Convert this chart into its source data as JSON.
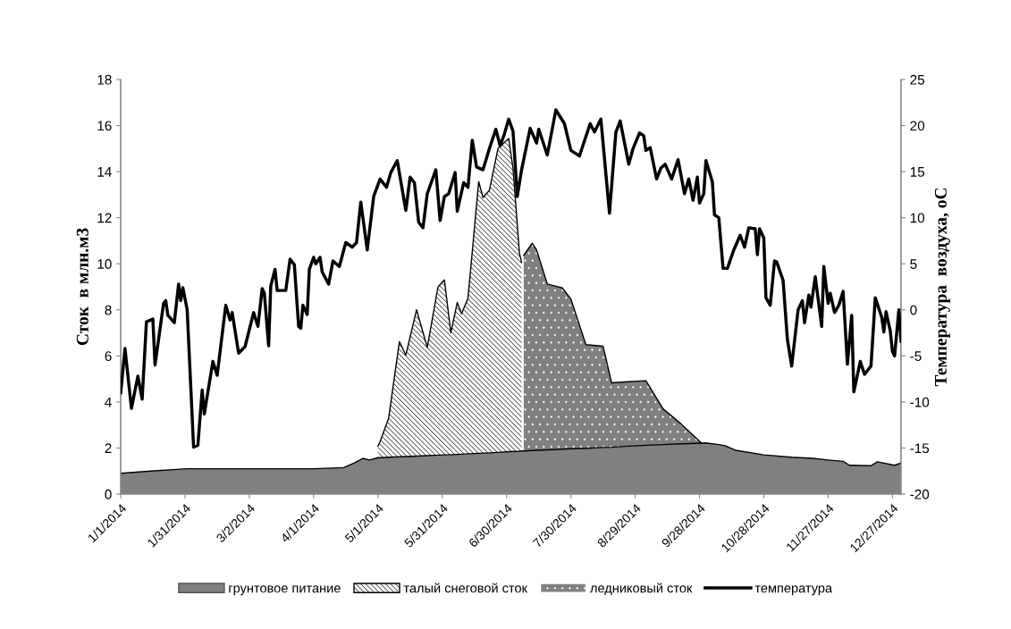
{
  "chart_data": {
    "type": "area",
    "stacked": true,
    "xlabel": null,
    "ylabel": "Сток  в млн.м3",
    "y2label": "Температура  воздуха, оС",
    "x": [
      "2014-01-01",
      "2014-01-15",
      "2014-02-01",
      "2014-03-01",
      "2014-04-01",
      "2014-04-15",
      "2014-04-20",
      "2014-04-24",
      "2014-04-27",
      "2014-04-30",
      "2014-05-01",
      "2014-05-02",
      "2014-05-06",
      "2014-05-11",
      "2014-05-14",
      "2014-05-19",
      "2014-05-24",
      "2014-05-29",
      "2014-06-01",
      "2014-06-04",
      "2014-06-07",
      "2014-06-09",
      "2014-06-12",
      "2014-06-17",
      "2014-06-19",
      "2014-06-22",
      "2014-06-26",
      "2014-07-01",
      "2014-07-03",
      "2014-07-06",
      "2014-07-07",
      "2014-07-08",
      "2014-07-12",
      "2014-07-14",
      "2014-07-19",
      "2014-07-26",
      "2014-07-30",
      "2014-08-06",
      "2014-08-14",
      "2014-08-18",
      "2014-08-24",
      "2014-09-03",
      "2014-09-11",
      "2014-09-19",
      "2014-09-29",
      "2014-10-01",
      "2014-10-07",
      "2014-10-10",
      "2014-10-15",
      "2014-10-28",
      "2014-11-10",
      "2014-11-20",
      "2014-11-27",
      "2014-12-04",
      "2014-12-07",
      "2014-12-17",
      "2014-12-20",
      "2014-12-28",
      "2014-12-31"
    ],
    "series": [
      {
        "name": "грунтовое питание",
        "color": "#808080",
        "values": [
          0.9,
          1.0,
          1.1,
          1.1,
          1.1,
          1.15,
          1.35,
          1.55,
          1.48,
          1.55,
          1.58,
          1.58,
          1.6,
          1.62,
          1.63,
          1.65,
          1.67,
          1.69,
          1.7,
          1.71,
          1.72,
          1.73,
          1.75,
          1.77,
          1.78,
          1.79,
          1.81,
          1.84,
          1.85,
          1.86,
          1.87,
          1.87,
          1.89,
          1.9,
          1.92,
          1.95,
          1.97,
          1.99,
          2.02,
          2.03,
          2.07,
          2.12,
          2.15,
          2.18,
          2.21,
          2.22,
          2.15,
          2.1,
          1.9,
          1.7,
          1.6,
          1.55,
          1.48,
          1.42,
          1.25,
          1.23,
          1.4,
          1.25,
          1.35
        ]
      },
      {
        "name": "талый снеговой сток",
        "color": "#ffffff",
        "values": [
          null,
          null,
          null,
          null,
          null,
          null,
          null,
          null,
          null,
          null,
          0.5,
          0.7,
          1.7,
          5.0,
          4.4,
          6.35,
          4.7,
          7.3,
          7.6,
          5.3,
          6.6,
          6.1,
          6.75,
          11.8,
          11.1,
          11.4,
          13.2,
          13.6,
          12.3,
          8.6,
          8.2,
          null,
          null,
          null,
          null,
          null,
          null,
          null,
          null,
          null,
          null,
          null,
          null,
          null,
          null,
          null,
          null,
          null,
          null,
          null,
          null,
          null,
          null,
          null,
          null,
          null,
          null,
          null,
          null
        ]
      },
      {
        "name": "ледниковый сток",
        "color": "#808080",
        "values": [
          null,
          null,
          null,
          null,
          null,
          null,
          null,
          null,
          null,
          null,
          null,
          null,
          null,
          null,
          null,
          null,
          null,
          null,
          null,
          null,
          null,
          null,
          null,
          null,
          null,
          null,
          null,
          null,
          null,
          null,
          null,
          8.5,
          9.0,
          8.7,
          7.2,
          7.0,
          6.5,
          4.5,
          4.4,
          2.8,
          2.8,
          2.8,
          1.55,
          0.9,
          0.0,
          null,
          null,
          null,
          null,
          null,
          null,
          null,
          null,
          null,
          null,
          null,
          null,
          null,
          null
        ]
      },
      {
        "name": "температура",
        "type": "line",
        "axis": "y2",
        "color": "#000000",
        "x": [
          "2014-01-01",
          "2014-01-03",
          "2014-01-06",
          "2014-01-09",
          "2014-01-11",
          "2014-01-13",
          "2014-01-16",
          "2014-01-17",
          "2014-01-21",
          "2014-01-22",
          "2014-01-23",
          "2014-01-26",
          "2014-01-28",
          "2014-01-29",
          "2014-01-30",
          "2014-02-01",
          "2014-02-04",
          "2014-02-06",
          "2014-02-08",
          "2014-02-09",
          "2014-02-13",
          "2014-02-15",
          "2014-02-19",
          "2014-02-21",
          "2014-02-22",
          "2014-02-25",
          "2014-02-28",
          "2014-03-04",
          "2014-03-06",
          "2014-03-08",
          "2014-03-09",
          "2014-03-11",
          "2014-03-12",
          "2014-03-14",
          "2014-03-15",
          "2014-03-19",
          "2014-03-21",
          "2014-03-23",
          "2014-03-25",
          "2014-03-26",
          "2014-03-27",
          "2014-03-29",
          "2014-03-30",
          "2014-04-01",
          "2014-04-02",
          "2014-04-04",
          "2014-04-05",
          "2014-04-08",
          "2014-04-10",
          "2014-04-13",
          "2014-04-16",
          "2014-04-19",
          "2014-04-21",
          "2014-04-23",
          "2014-04-26",
          "2014-04-29",
          "2014-05-02",
          "2014-05-05",
          "2014-05-07",
          "2014-05-10",
          "2014-05-14",
          "2014-05-16",
          "2014-05-18",
          "2014-05-20",
          "2014-05-22",
          "2014-05-24",
          "2014-05-28",
          "2014-05-30",
          "2014-06-01",
          "2014-06-03",
          "2014-06-06",
          "2014-06-07",
          "2014-06-10",
          "2014-06-12",
          "2014-06-14",
          "2014-06-16",
          "2014-06-19",
          "2014-06-22",
          "2014-06-25",
          "2014-06-27",
          "2014-06-29",
          "2014-07-01",
          "2014-07-03",
          "2014-07-05",
          "2014-07-07",
          "2014-07-11",
          "2014-07-14",
          "2014-07-15",
          "2014-07-19",
          "2014-07-23",
          "2014-07-27",
          "2014-07-30",
          "2014-08-03",
          "2014-08-08",
          "2014-08-10",
          "2014-08-13",
          "2014-08-17",
          "2014-08-20",
          "2014-08-22",
          "2014-08-26",
          "2014-08-28",
          "2014-08-31",
          "2014-09-02",
          "2014-09-03",
          "2014-09-05",
          "2014-09-08",
          "2014-09-10",
          "2014-09-12",
          "2014-09-15",
          "2014-09-18",
          "2014-09-21",
          "2014-09-23",
          "2014-09-25",
          "2014-09-27",
          "2014-09-28",
          "2014-09-30",
          "2014-10-01",
          "2014-10-04",
          "2014-10-05",
          "2014-10-07",
          "2014-10-09",
          "2014-10-11",
          "2014-10-14",
          "2014-10-17",
          "2014-10-19",
          "2014-10-21",
          "2014-10-24",
          "2014-10-25",
          "2014-10-26",
          "2014-10-28",
          "2014-10-29",
          "2014-10-31",
          "2014-11-02",
          "2014-11-03",
          "2014-11-06",
          "2014-11-08",
          "2014-11-10",
          "2014-11-13",
          "2014-11-15",
          "2014-11-16",
          "2014-11-18",
          "2014-11-19",
          "2014-11-21",
          "2014-11-24",
          "2014-11-25",
          "2014-11-27",
          "2014-11-28",
          "2014-11-30",
          "2014-12-02",
          "2014-12-04",
          "2014-12-06",
          "2014-12-08",
          "2014-12-09",
          "2014-12-12",
          "2014-12-14",
          "2014-12-17",
          "2014-12-19",
          "2014-12-22",
          "2014-12-23",
          "2014-12-24",
          "2014-12-26",
          "2014-12-27",
          "2014-12-28",
          "2014-12-30",
          "2014-12-31"
        ],
        "values": [
          -9.0,
          -4.2,
          -10.7,
          -7.2,
          -9.7,
          -1.3,
          -1.0,
          -6.0,
          0.7,
          1.0,
          -0.6,
          -1.4,
          2.8,
          1.0,
          2.4,
          0.0,
          -14.9,
          -14.7,
          -8.7,
          -11.3,
          -5.6,
          -7.1,
          0.5,
          -1.1,
          -0.3,
          -4.7,
          -4.0,
          -0.3,
          -1.8,
          2.3,
          1.8,
          -3.9,
          2.6,
          4.4,
          2.1,
          2.1,
          5.5,
          4.9,
          -1.8,
          -2.0,
          0.5,
          -0.5,
          4.4,
          5.7,
          5.0,
          5.7,
          4.1,
          2.8,
          5.3,
          4.7,
          7.3,
          6.8,
          7.3,
          11.7,
          6.5,
          12.3,
          14.2,
          13.3,
          14.9,
          16.2,
          10.8,
          14.4,
          13.8,
          9.5,
          8.9,
          12.6,
          15.2,
          9.7,
          12.3,
          12.6,
          14.9,
          10.7,
          13.8,
          13.3,
          18.4,
          15.5,
          15.2,
          17.5,
          19.6,
          17.8,
          19.1,
          20.7,
          19.4,
          12.3,
          15.2,
          19.7,
          18.1,
          19.6,
          16.8,
          21.7,
          20.2,
          17.3,
          16.7,
          20.2,
          19.3,
          20.7,
          10.5,
          19.3,
          20.5,
          15.8,
          17.5,
          19.2,
          18.9,
          17.3,
          17.6,
          14.2,
          15.4,
          15.8,
          14.2,
          16.3,
          12.6,
          14.2,
          11.9,
          14.4,
          11.6,
          12.6,
          16.2,
          13.9,
          10.3,
          10.0,
          4.5,
          4.5,
          6.5,
          8.1,
          6.8,
          8.9,
          8.8,
          6.0,
          8.8,
          7.8,
          1.3,
          0.5,
          5.3,
          5.2,
          3.2,
          -3.2,
          -6.1,
          0.0,
          1.0,
          -1.4,
          1.6,
          0.3,
          3.6,
          -1.8,
          4.7,
          0.7,
          1.8,
          -0.3,
          0.5,
          2.0,
          -5.9,
          -0.6,
          -8.9,
          -5.6,
          -7.0,
          -6.1,
          1.3,
          -0.8,
          -2.4,
          -0.2,
          -2.3,
          -4.5,
          -5.0,
          0.0,
          -3.4
        ]
      }
    ],
    "xlim": [
      "2014-01-01",
      "2014-12-31"
    ],
    "xticks": [
      {
        "value": "2014-01-01",
        "label": "1/1/2014"
      },
      {
        "value": "2014-01-31",
        "label": "1/31/2014"
      },
      {
        "value": "2014-03-02",
        "label": "3/2/2014"
      },
      {
        "value": "2014-04-01",
        "label": "4/1/2014"
      },
      {
        "value": "2014-05-01",
        "label": "5/1/2014"
      },
      {
        "value": "2014-05-31",
        "label": "5/31/2014"
      },
      {
        "value": "2014-06-30",
        "label": "6/30/2014"
      },
      {
        "value": "2014-07-30",
        "label": "7/30/2014"
      },
      {
        "value": "2014-08-29",
        "label": "8/29/2014"
      },
      {
        "value": "2014-09-28",
        "label": "9/28/2014"
      },
      {
        "value": "2014-10-28",
        "label": "10/28/2014"
      },
      {
        "value": "2014-11-27",
        "label": "11/27/2014"
      },
      {
        "value": "2014-12-27",
        "label": "12/27/2014"
      }
    ],
    "ylim": [
      0,
      18
    ],
    "yticks": [
      0,
      2,
      4,
      6,
      8,
      10,
      12,
      14,
      16,
      18
    ],
    "y2lim": [
      -20,
      25
    ],
    "y2ticks": [
      -20,
      -15,
      -10,
      -5,
      0,
      5,
      10,
      15,
      20,
      25
    ],
    "grid": false,
    "legend": "bottom"
  }
}
